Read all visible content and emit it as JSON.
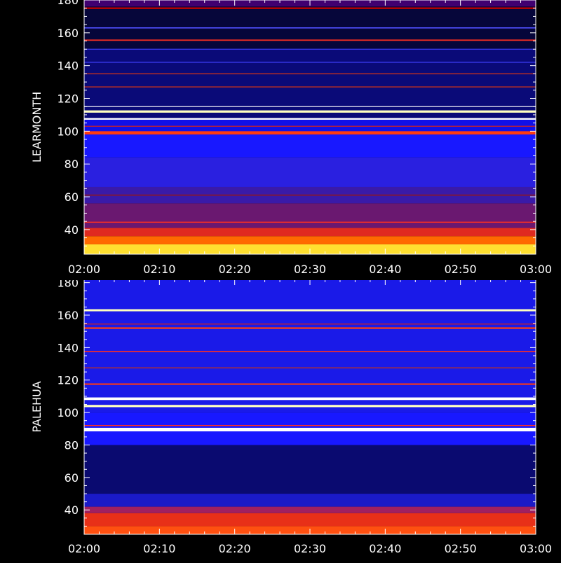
{
  "chart_data": [
    {
      "type": "heatmap",
      "ylabel": "LEARMONTH",
      "ylim": [
        25,
        180
      ],
      "yticks": [
        "40",
        "60",
        "80",
        "100",
        "120",
        "140",
        "160",
        "180"
      ],
      "xlim": [
        "02:00",
        "03:00"
      ],
      "xticks": [
        "02:00",
        "02:10",
        "02:20",
        "02:30",
        "02:40",
        "02:50",
        "03:00"
      ],
      "colormap": [
        "#000000",
        "#0000ff",
        "#ff0000",
        "#ffff00",
        "#ffffff"
      ],
      "base_bands": [
        {
          "from": 25,
          "to": 31,
          "color": "#ffe030"
        },
        {
          "from": 31,
          "to": 36,
          "color": "#ff6a00"
        },
        {
          "from": 36,
          "to": 41,
          "color": "#e02a20"
        },
        {
          "from": 41,
          "to": 56,
          "color": "#6a1870"
        },
        {
          "from": 56,
          "to": 66,
          "color": "#3a1aa8"
        },
        {
          "from": 66,
          "to": 84,
          "color": "#2a20e0"
        },
        {
          "from": 84,
          "to": 98,
          "color": "#1818ff"
        },
        {
          "from": 98,
          "to": 108,
          "color": "#1010e8"
        },
        {
          "from": 108,
          "to": 150,
          "color": "#0a0a78"
        },
        {
          "from": 150,
          "to": 176,
          "color": "#06063a"
        },
        {
          "from": 176,
          "to": 180,
          "color": "#400070"
        }
      ],
      "lines": [
        {
          "freq": 44.5,
          "width": 0.6,
          "color": "#ff3020"
        },
        {
          "freq": 61,
          "width": 0.8,
          "color": "#801838"
        },
        {
          "freq": 99,
          "width": 2.0,
          "color": "#ff3a10"
        },
        {
          "freq": 103,
          "width": 0.6,
          "color": "#c02030"
        },
        {
          "freq": 107.5,
          "width": 1.0,
          "color": "#ffffff"
        },
        {
          "freq": 112,
          "width": 1.4,
          "color": "#ffffc0"
        },
        {
          "freq": 115,
          "width": 0.5,
          "color": "#ffffff"
        },
        {
          "freq": 127,
          "width": 0.6,
          "color": "#c03020"
        },
        {
          "freq": 135,
          "width": 0.6,
          "color": "#c03020"
        },
        {
          "freq": 142,
          "width": 0.5,
          "color": "#4040ff"
        },
        {
          "freq": 150,
          "width": 0.5,
          "color": "#4040ff"
        },
        {
          "freq": 155.5,
          "width": 0.8,
          "color": "#ff3020"
        },
        {
          "freq": 163,
          "width": 0.7,
          "color": "#5050ff"
        },
        {
          "freq": 175,
          "width": 1.0,
          "color": "#c00000"
        }
      ]
    },
    {
      "type": "heatmap",
      "ylabel": "PALEHUA",
      "ylim": [
        25,
        182
      ],
      "yticks": [
        "40",
        "60",
        "80",
        "100",
        "120",
        "140",
        "160",
        "180"
      ],
      "xlim": [
        "02:00",
        "03:00"
      ],
      "xticks": [
        "02:00",
        "02:10",
        "02:20",
        "02:30",
        "02:40",
        "02:50",
        "03:00"
      ],
      "colormap": [
        "#000000",
        "#0000ff",
        "#ff0000",
        "#ffff00",
        "#ffffff"
      ],
      "base_bands": [
        {
          "from": 25,
          "to": 30,
          "color": "#ff5010"
        },
        {
          "from": 30,
          "to": 38,
          "color": "#e83018"
        },
        {
          "from": 38,
          "to": 42,
          "color": "#a02060"
        },
        {
          "from": 42,
          "to": 50,
          "color": "#1a1ac8"
        },
        {
          "from": 50,
          "to": 80,
          "color": "#0a0a70"
        },
        {
          "from": 80,
          "to": 100,
          "color": "#1818ff"
        },
        {
          "from": 100,
          "to": 182,
          "color": "#1a1ae8"
        }
      ],
      "lines": [
        {
          "freq": 89.5,
          "width": 2.2,
          "color": "#ffffff"
        },
        {
          "freq": 92,
          "width": 0.6,
          "color": "#ff3020"
        },
        {
          "freq": 104,
          "width": 1.4,
          "color": "#ffffc0"
        },
        {
          "freq": 108.5,
          "width": 1.6,
          "color": "#ffffff"
        },
        {
          "freq": 117.5,
          "width": 0.9,
          "color": "#ff3a10"
        },
        {
          "freq": 127.5,
          "width": 0.6,
          "color": "#c03020"
        },
        {
          "freq": 137.5,
          "width": 0.7,
          "color": "#ff3020"
        },
        {
          "freq": 152,
          "width": 1.0,
          "color": "#ff4010"
        },
        {
          "freq": 154.5,
          "width": 0.6,
          "color": "#c02030"
        },
        {
          "freq": 163,
          "width": 1.3,
          "color": "#ffffc0"
        }
      ]
    }
  ]
}
